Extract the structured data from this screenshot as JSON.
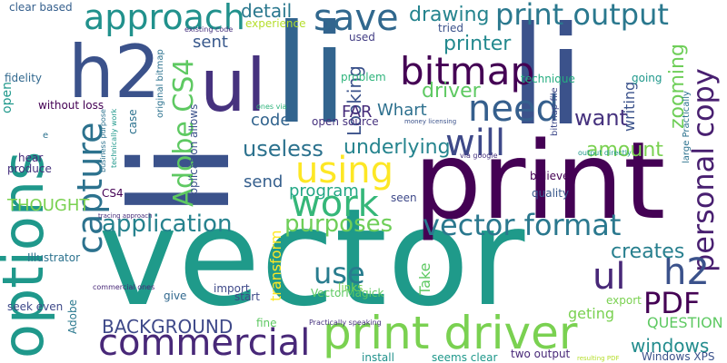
{
  "words": [
    {
      "text": "vector",
      "color": "#1f9a8a"
    },
    {
      "text": "print",
      "color": "#440154"
    },
    {
      "text": "li",
      "color": "#32648e"
    },
    {
      "text": "li",
      "color": "#3b528b"
    },
    {
      "text": "options",
      "color": "#1f988b"
    },
    {
      "text": "ul",
      "color": "#46327e"
    },
    {
      "text": "h2",
      "color": "#3b528b"
    },
    {
      "text": "print driver",
      "color": "#7ad151"
    },
    {
      "text": "commercial",
      "color": "#482878"
    },
    {
      "text": "approach",
      "color": "#21918c"
    },
    {
      "text": "print output",
      "color": "#2a788e"
    },
    {
      "text": "save",
      "color": "#31688e"
    },
    {
      "text": "bitmap",
      "color": "#440154"
    },
    {
      "text": "need",
      "color": "#355f8d"
    },
    {
      "text": "will",
      "color": "#3e4989"
    },
    {
      "text": "using",
      "color": "#fde725"
    },
    {
      "text": "work",
      "color": "#35b779"
    },
    {
      "text": "vector format",
      "color": "#2a788e"
    },
    {
      "text": "capture",
      "color": "#2c728e"
    },
    {
      "text": "Adobe CS4",
      "color": "#5ec962"
    },
    {
      "text": "personal copy",
      "color": "#481f70"
    },
    {
      "text": "ul",
      "color": "#482878"
    },
    {
      "text": "h2",
      "color": "#3b528b"
    },
    {
      "text": "PDF",
      "color": "#440154"
    },
    {
      "text": "use",
      "color": "#287c8e"
    },
    {
      "text": "application",
      "color": "#26828e"
    },
    {
      "text": "purposes",
      "color": "#6ece58"
    },
    {
      "text": "useless",
      "color": "#2c728e"
    },
    {
      "text": "want",
      "color": "#46327e"
    },
    {
      "text": "amount",
      "color": "#7ad151"
    },
    {
      "text": "underlying",
      "color": "#25848e"
    },
    {
      "text": "creates",
      "color": "#277f8e"
    },
    {
      "text": "drawing",
      "color": "#25848e"
    },
    {
      "text": "printer",
      "color": "#23898e"
    },
    {
      "text": "driver",
      "color": "#5ec962"
    },
    {
      "text": "zooming",
      "color": "#6ece58"
    },
    {
      "text": "BACKGROUND",
      "color": "#3e4989"
    },
    {
      "text": "windows",
      "color": "#228c8d"
    },
    {
      "text": "QUESTION",
      "color": "#5ec962"
    },
    {
      "text": "detail",
      "color": "#2a788e"
    },
    {
      "text": "Looking",
      "color": "#3b528b"
    },
    {
      "text": "writing",
      "color": "#3b528b"
    },
    {
      "text": "sent",
      "color": "#38588c"
    },
    {
      "text": "code",
      "color": "#32648e"
    },
    {
      "text": "FAR",
      "color": "#472d7b"
    },
    {
      "text": "Whart",
      "color": "#2d708e"
    },
    {
      "text": "send",
      "color": "#355f8d"
    },
    {
      "text": "program",
      "color": "#22a785"
    },
    {
      "text": "THOUGHT",
      "color": "#7ad151"
    },
    {
      "text": "transform",
      "color": "#fde725"
    },
    {
      "text": "Take",
      "color": "#5ec962"
    },
    {
      "text": "geting",
      "color": "#7ad151"
    },
    {
      "text": "export",
      "color": "#7ad151"
    },
    {
      "text": "Windows XPS",
      "color": "#3b528b"
    },
    {
      "text": "clear based",
      "color": "#355f8d"
    },
    {
      "text": "fidelity",
      "color": "#31688e"
    },
    {
      "text": "open",
      "color": "#1f988b"
    },
    {
      "text": "without loss",
      "color": "#440154"
    },
    {
      "text": "hear",
      "color": "#472d7b"
    },
    {
      "text": "produce",
      "color": "#46327e"
    },
    {
      "text": "case",
      "color": "#2c728e"
    },
    {
      "text": "CS4",
      "color": "#440154"
    },
    {
      "text": "Illustrator",
      "color": "#2c728e"
    },
    {
      "text": "seek even",
      "color": "#3e4989"
    },
    {
      "text": "Adobe",
      "color": "#2a788e"
    },
    {
      "text": "give",
      "color": "#31688e"
    },
    {
      "text": "import",
      "color": "#3e4989"
    },
    {
      "text": "start",
      "color": "#3e4989"
    },
    {
      "text": "fine",
      "color": "#5ec962"
    },
    {
      "text": "install",
      "color": "#21918c"
    },
    {
      "text": "seems clear",
      "color": "#1f988b"
    },
    {
      "text": "two output",
      "color": "#482878"
    },
    {
      "text": "links",
      "color": "#7ad151"
    },
    {
      "text": "VectorMagick",
      "color": "#5ec962"
    },
    {
      "text": "open source",
      "color": "#46327e"
    },
    {
      "text": "believe",
      "color": "#440154"
    },
    {
      "text": "quality",
      "color": "#38588c"
    },
    {
      "text": "seen",
      "color": "#3e4989"
    },
    {
      "text": "used",
      "color": "#433e85"
    },
    {
      "text": "problem",
      "color": "#2fb47c"
    },
    {
      "text": "tried",
      "color": "#3b528b"
    },
    {
      "text": "technique",
      "color": "#26ad81"
    },
    {
      "text": "going",
      "color": "#1f988b"
    },
    {
      "text": "experience",
      "color": "#b5de2b"
    },
    {
      "text": "application allows",
      "color": "#3b528b"
    },
    {
      "text": "original bitmap",
      "color": "#2c728e"
    },
    {
      "text": "bitmap file",
      "color": "#3e4989"
    },
    {
      "text": "large Practically",
      "color": "#2c728e"
    },
    {
      "text": "existing code",
      "color": "#46327e"
    },
    {
      "text": "ones via",
      "color": "#2fb47c"
    },
    {
      "text": "business purpose",
      "color": "#2c728e"
    },
    {
      "text": "technically work",
      "color": "#1f988b"
    },
    {
      "text": "money licensing",
      "color": "#3b528b"
    },
    {
      "text": "via google",
      "color": "#46327e"
    },
    {
      "text": "output directly",
      "color": "#1f988b"
    },
    {
      "text": "tracing approach",
      "color": "#472d7b"
    },
    {
      "text": "commercial ones",
      "color": "#482878"
    },
    {
      "text": "Practically speaking",
      "color": "#46327e"
    },
    {
      "text": "resulting PDF",
      "color": "#b5de2b"
    },
    {
      "text": "e",
      "color": "#2c728e"
    }
  ]
}
